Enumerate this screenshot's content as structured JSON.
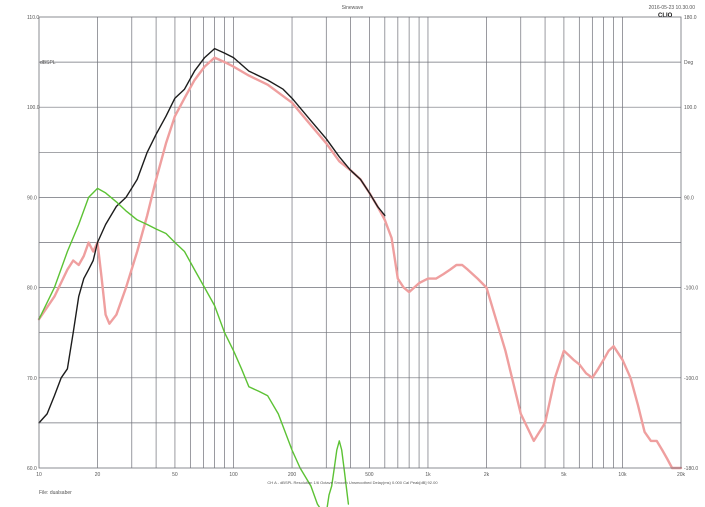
{
  "header": {
    "title": "Sinewave",
    "datetime": "2016-05-23 10.30.00",
    "brand": "CLIO"
  },
  "footer": {
    "settings": "CH A - dBSPL  Resolution 1/6 Octave  Smooth Unsmoothed  Delay(ms) 0.000  Cal Peak[dB] 92.00",
    "note": "File: dualsaber"
  },
  "colors": {
    "grid": "#6f7078",
    "black_trace": "#1c1c1c",
    "red_trace": "#ef9f9f",
    "green_trace": "#5cc234"
  },
  "chart_data": {
    "type": "line",
    "title": "Sinewave",
    "x_scale": "log",
    "xlim": [
      10,
      20000
    ],
    "ylim": [
      60,
      110
    ],
    "ylabel": "dBSPL",
    "ylabel_right": "Deg",
    "x_tick_labels": [
      "10",
      "20",
      "50",
      "100",
      "200",
      "500",
      "1k",
      "2k",
      "5k",
      "10k",
      "20k"
    ],
    "y_tick_labels": [
      "110.0",
      "100.0",
      "90.0",
      "80.0",
      "70.0",
      "60.0"
    ],
    "right_tick_labels": [
      "180.0",
      "100.0",
      "90.0",
      "-100.0",
      "-100.0",
      "-180.0"
    ],
    "series": [
      {
        "color": "black",
        "x": [
          10,
          11,
          12,
          13,
          14,
          15,
          16,
          17,
          18,
          19,
          20,
          22,
          25,
          28,
          32,
          36,
          40,
          45,
          50,
          56,
          63,
          71,
          80,
          90,
          100,
          120,
          150,
          180,
          200,
          250,
          300,
          350,
          400,
          450,
          500,
          550,
          600
        ],
        "y": [
          65,
          66,
          68,
          70,
          71,
          75,
          79,
          81,
          82,
          83,
          85,
          87,
          89,
          90,
          92,
          95,
          97,
          99,
          101,
          102,
          104,
          105.5,
          106.5,
          106,
          105.5,
          104,
          103,
          102,
          101,
          98.5,
          96.5,
          94.5,
          93,
          92,
          90.5,
          89,
          88
        ]
      },
      {
        "color": "red",
        "x": [
          10,
          12,
          14,
          15,
          16,
          17,
          18,
          19,
          20,
          21,
          22,
          23,
          25,
          28,
          32,
          36,
          40,
          45,
          50,
          56,
          63,
          71,
          80,
          90,
          100,
          120,
          150,
          200,
          250,
          300,
          350,
          400,
          450,
          500,
          550,
          600,
          650,
          700,
          750,
          800,
          900,
          1000,
          1100,
          1200,
          1300,
          1400,
          1500,
          1600,
          1800,
          2000,
          2200,
          2500,
          3000,
          3500,
          4000,
          4500,
          5000,
          5300,
          5600,
          6000,
          6500,
          7000,
          7500,
          8000,
          8500,
          9000,
          10000,
          11000,
          12000,
          13000,
          14000,
          15000,
          16000,
          17000,
          18000,
          19000,
          20000
        ],
        "y": [
          76.5,
          79,
          82,
          83,
          82.5,
          83.5,
          85,
          84,
          85,
          81,
          77,
          76,
          77,
          80,
          84,
          88,
          92,
          96,
          99,
          101,
          103,
          104.5,
          105.5,
          105,
          104.5,
          103.5,
          102.5,
          100.5,
          98,
          96,
          94,
          93,
          92,
          90.5,
          89,
          87.5,
          85.5,
          81,
          80,
          79.5,
          80.5,
          81,
          81,
          81.5,
          82,
          82.5,
          82.5,
          82,
          81,
          80,
          77,
          73,
          66,
          63,
          65,
          70,
          73,
          72.5,
          72,
          71.5,
          70.5,
          70,
          71,
          72,
          73,
          73.5,
          72,
          70,
          67,
          64,
          63,
          63,
          62,
          61,
          60,
          60,
          60
        ]
      },
      {
        "color": "green",
        "x": [
          10,
          12,
          14,
          16,
          18,
          20,
          22,
          25,
          28,
          32,
          36,
          40,
          45,
          50,
          56,
          63,
          71,
          80,
          90,
          100,
          110,
          120,
          135,
          150,
          170,
          200,
          220,
          250,
          270,
          290,
          300,
          310,
          320,
          330,
          340,
          350,
          360,
          370,
          380,
          390
        ],
        "y": [
          76.5,
          80,
          84,
          87,
          90,
          91,
          90.5,
          89.5,
          88.5,
          87.5,
          87,
          86.5,
          86,
          85,
          84,
          82,
          80,
          78,
          75,
          73,
          71,
          69,
          68.5,
          68,
          66,
          62,
          60,
          58,
          56,
          55,
          55,
          57,
          58,
          60,
          62,
          63,
          62,
          60,
          58,
          56
        ]
      }
    ]
  }
}
